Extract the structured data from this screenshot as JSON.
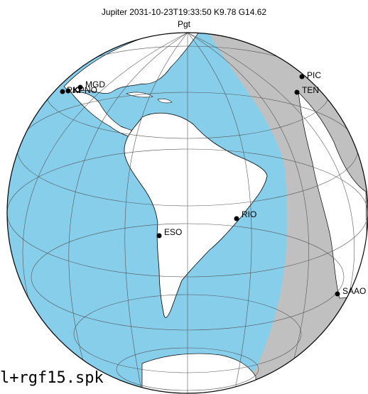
{
  "title": "Jupiter 2031-10-23T19:33:50  K9.78  G14.62",
  "subtitle": "Pgt",
  "footer_text": "l+rgf15.spk",
  "colors": {
    "ocean": "#87ceeb",
    "land": "#ffffff",
    "night": "#c0c0c0",
    "border": "#000000"
  },
  "observatories": [
    {
      "label": "PIC"
    },
    {
      "label": "TEN"
    },
    {
      "label": "MGD"
    },
    {
      "label": "PKI"
    },
    {
      "label": "KPNO"
    },
    {
      "label": "RIO"
    },
    {
      "label": "ESO"
    },
    {
      "label": "SAAO"
    }
  ]
}
